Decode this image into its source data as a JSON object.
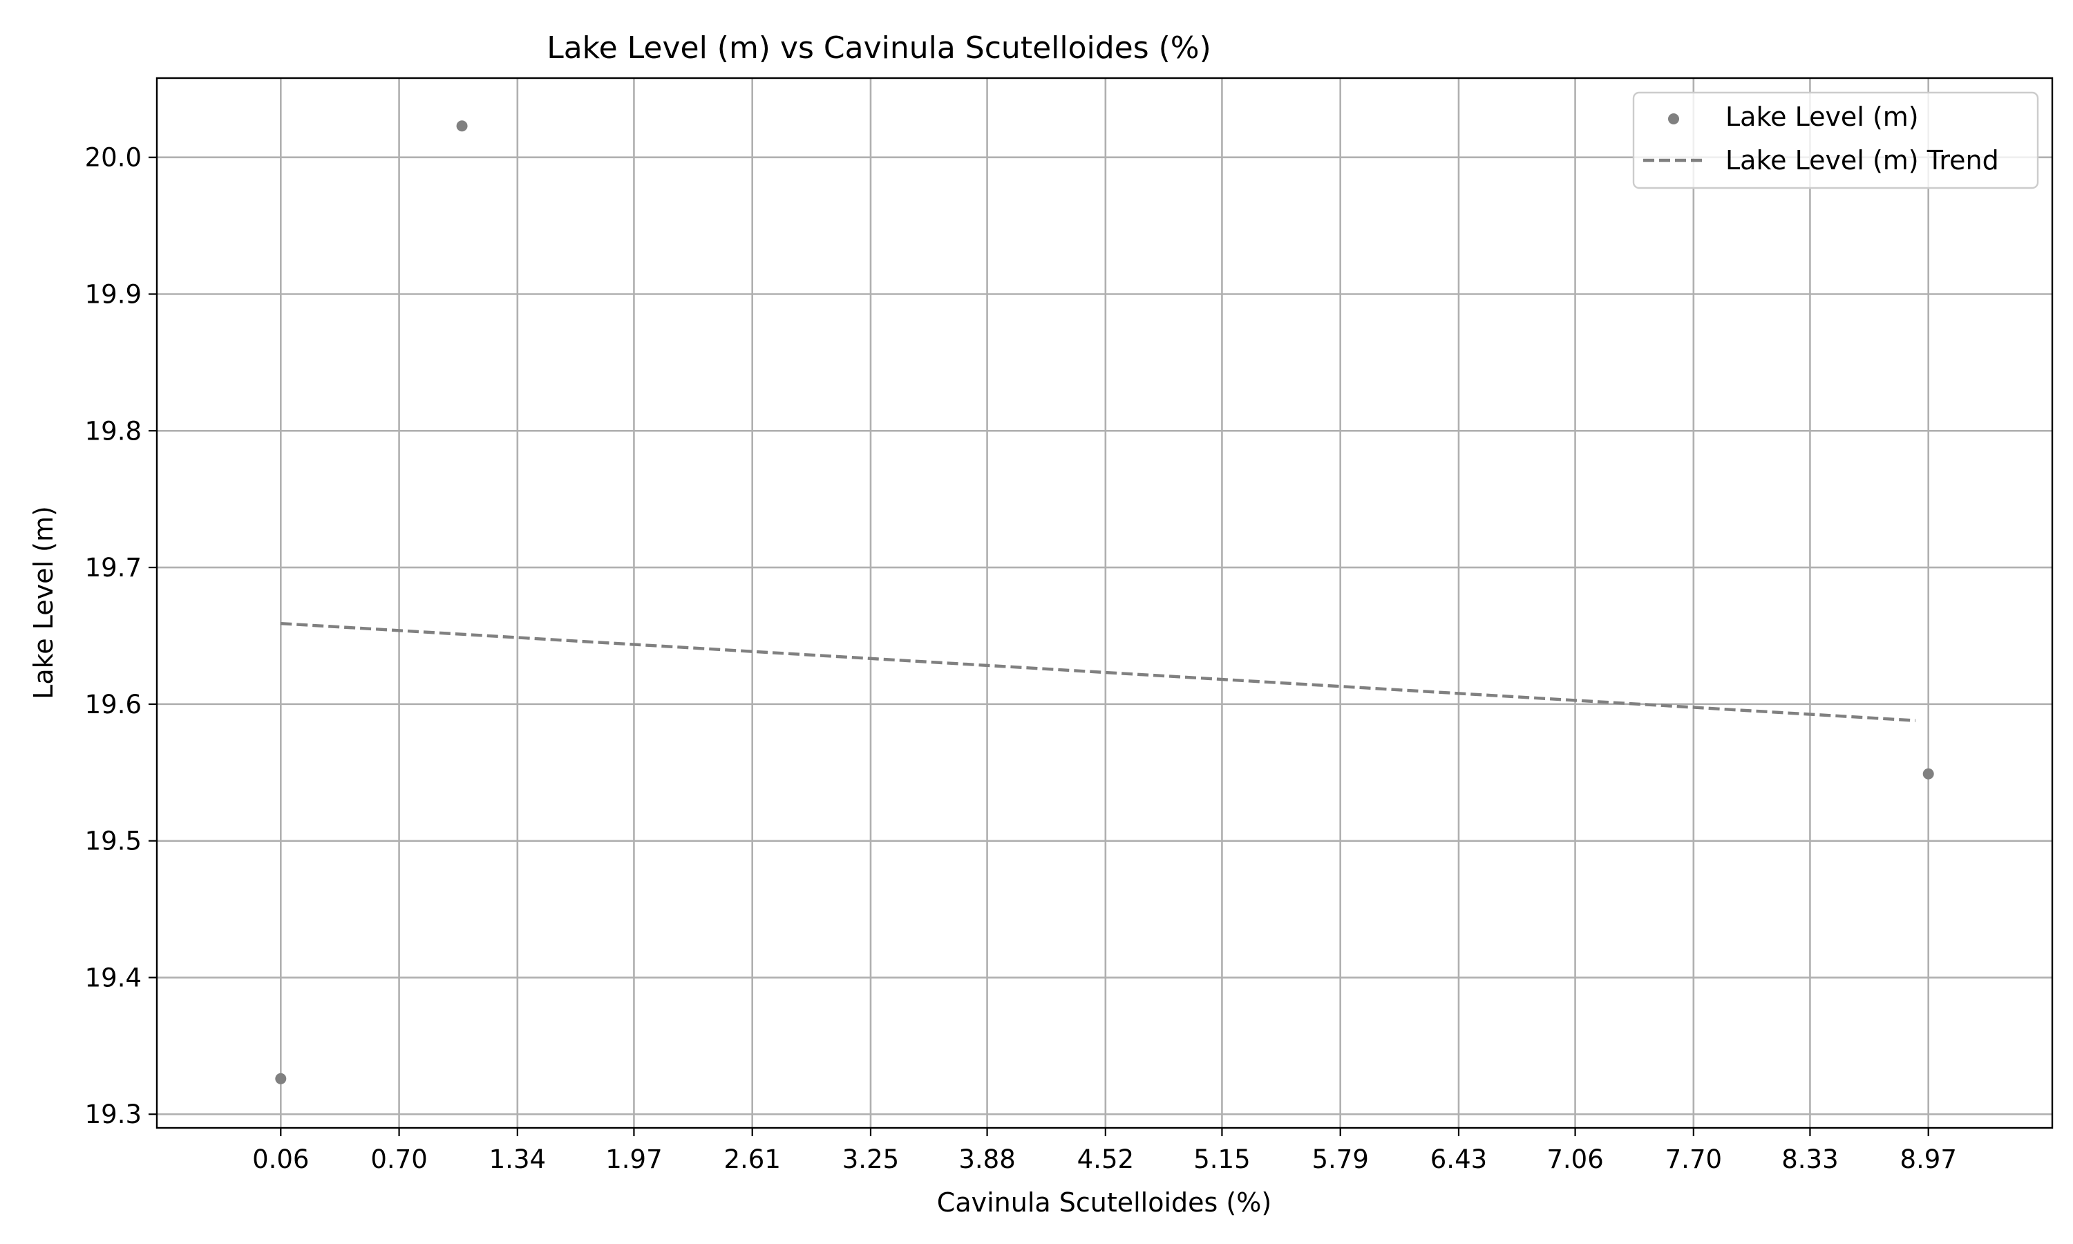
{
  "chart_data": {
    "type": "scatter",
    "title": "Lake Level (m) vs Cavinula Scutelloides (%)",
    "xlabel": "Cavinula Scutelloides (%)",
    "ylabel": "Lake Level (m)",
    "xlim": [
      -0.61,
      9.64
    ],
    "ylim": [
      19.29,
      20.058
    ],
    "xticks": [
      0.06,
      0.7,
      1.34,
      1.97,
      2.61,
      3.25,
      3.88,
      4.52,
      5.15,
      5.79,
      6.43,
      7.06,
      7.7,
      8.33,
      8.97
    ],
    "xtick_labels": [
      "0.06",
      "0.70",
      "1.34",
      "1.97",
      "2.61",
      "3.25",
      "3.88",
      "4.52",
      "5.15",
      "5.79",
      "6.43",
      "7.06",
      "7.70",
      "8.33",
      "8.97"
    ],
    "yticks": [
      19.3,
      19.4,
      19.5,
      19.6,
      19.7,
      19.8,
      19.9,
      20.0
    ],
    "ytick_labels": [
      "19.3",
      "19.4",
      "19.5",
      "19.6",
      "19.7",
      "19.8",
      "19.9",
      "20.0"
    ],
    "grid": true,
    "legend_position": "top-right",
    "series": [
      {
        "name": "Lake Level (m)",
        "kind": "scatter",
        "color": "#808080",
        "points": [
          {
            "x": 0.06,
            "y": 19.326
          },
          {
            "x": 1.04,
            "y": 20.023
          },
          {
            "x": 8.97,
            "y": 19.549
          }
        ]
      },
      {
        "name": "Lake Level (m) Trend",
        "kind": "line",
        "style": "dashed",
        "color": "#808080",
        "points": [
          {
            "x": 0.06,
            "y": 19.659
          },
          {
            "x": 8.9,
            "y": 19.588
          }
        ]
      }
    ]
  }
}
